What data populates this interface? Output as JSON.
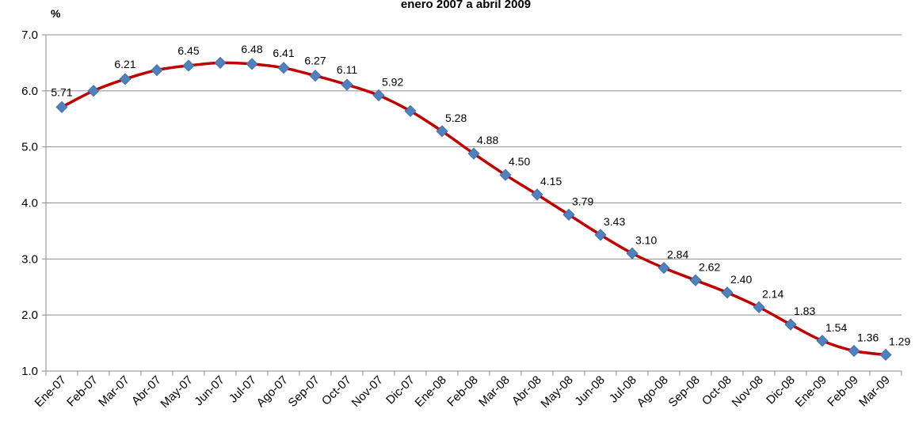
{
  "chart_data": {
    "type": "line",
    "title": "enero 2007 a abril 2009",
    "ylabel": "%",
    "xlabel": "",
    "ylim": [
      1.0,
      7.0
    ],
    "yticks": [
      "1.0",
      "2.0",
      "3.0",
      "4.0",
      "5.0",
      "6.0",
      "7.0"
    ],
    "grid": true,
    "categories": [
      "Ene-07",
      "Feb-07",
      "Mar-07",
      "Abr-07",
      "May-07",
      "Jun-07",
      "Jul-07",
      "Ago-07",
      "Sep-07",
      "Oct-07",
      "Nov-07",
      "Dic-07",
      "Ene-08",
      "Feb-08",
      "Mar-08",
      "Abr-08",
      "May-08",
      "Jun-08",
      "Jul-08",
      "Ago-08",
      "Sep-08",
      "Oct-08",
      "Nov-08",
      "Dic-08",
      "Ene-09",
      "Feb-09",
      "Mar-09"
    ],
    "series": [
      {
        "values": [
          5.71,
          6.0,
          6.21,
          6.37,
          6.45,
          6.5,
          6.48,
          6.41,
          6.27,
          6.11,
          5.92,
          5.64,
          5.28,
          4.88,
          4.5,
          4.15,
          3.79,
          3.43,
          3.1,
          2.84,
          2.62,
          2.4,
          2.14,
          1.83,
          1.54,
          1.36,
          1.29
        ],
        "data_labels": [
          "5.71",
          "",
          "6.21",
          "",
          "6.45",
          "",
          "6.48",
          "6.41",
          "6.27",
          "6.11",
          "5.92",
          "",
          "5.28",
          "4.88",
          "4.50",
          "4.15",
          "3.79",
          "3.43",
          "3.10",
          "2.84",
          "2.62",
          "2.40",
          "2.14",
          "1.83",
          "1.54",
          "1.36",
          "1.29"
        ],
        "line_color": "#c00000",
        "marker_color": "#4f81bd"
      }
    ]
  }
}
